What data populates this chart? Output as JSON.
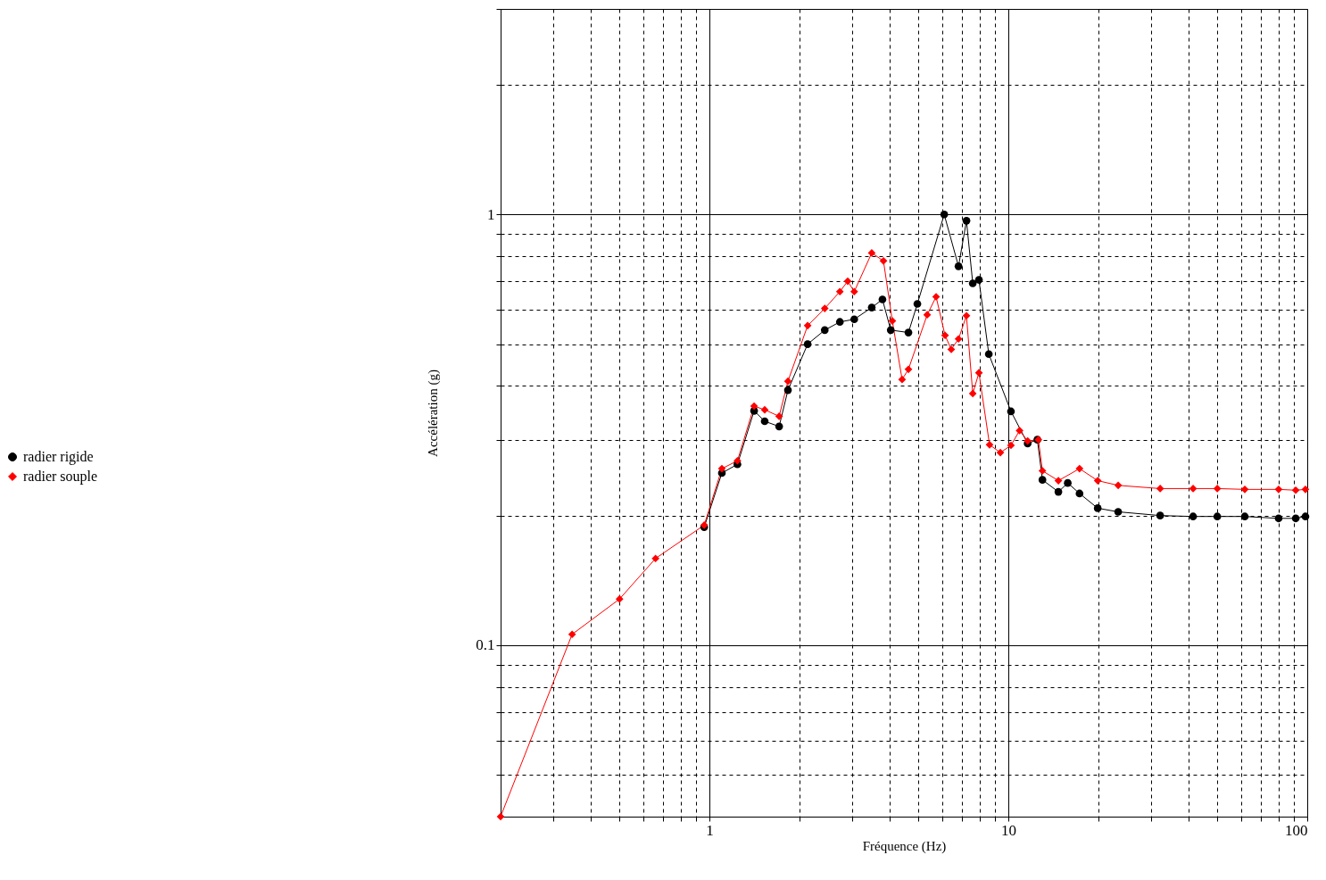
{
  "chart_data": {
    "type": "line",
    "xlabel": "Fréquence (Hz)",
    "ylabel": "Accélération (g)",
    "log": "xy",
    "xlim": [
      0.2,
      100
    ],
    "ylim": [
      0.04,
      3
    ],
    "xticks": [
      {
        "value": 0.3,
        "label": null
      },
      {
        "value": 0.4,
        "label": null
      },
      {
        "value": 0.5,
        "label": null
      },
      {
        "value": 0.6,
        "label": null
      },
      {
        "value": 0.7,
        "label": null
      },
      {
        "value": 0.8,
        "label": null
      },
      {
        "value": 0.9,
        "label": null
      },
      1,
      {
        "value": 2,
        "label": null
      },
      {
        "value": 3,
        "label": null
      },
      {
        "value": 4,
        "label": null
      },
      {
        "value": 5,
        "label": null
      },
      {
        "value": 6,
        "label": null
      },
      {
        "value": 7,
        "label": null
      },
      {
        "value": 8,
        "label": null
      },
      {
        "value": 9,
        "label": null
      },
      10,
      {
        "value": 20,
        "label": null
      },
      {
        "value": 30,
        "label": null
      },
      {
        "value": 40,
        "label": null
      },
      {
        "value": 50,
        "label": null
      },
      {
        "value": 60,
        "label": null
      },
      {
        "value": 70,
        "label": null
      },
      {
        "value": 80,
        "label": null
      },
      {
        "value": 90,
        "label": null
      },
      100
    ],
    "yticks": [
      {
        "value": 0.05,
        "label": null
      },
      {
        "value": 0.06,
        "label": null
      },
      {
        "value": 0.07,
        "label": null
      },
      {
        "value": 0.08,
        "label": null
      },
      {
        "value": 0.09,
        "label": null
      },
      0.1,
      {
        "value": 0.2,
        "label": null
      },
      {
        "value": 0.3,
        "label": null
      },
      {
        "value": 0.4,
        "label": null
      },
      {
        "value": 0.5,
        "label": null
      },
      {
        "value": 0.6,
        "label": null
      },
      {
        "value": 0.7,
        "label": null
      },
      {
        "value": 0.8,
        "label": null
      },
      {
        "value": 0.9,
        "label": null
      },
      1,
      {
        "value": 2,
        "label": null
      },
      {
        "value": 3,
        "label": null
      }
    ],
    "grid": true,
    "legend": "left",
    "line_style": "solid",
    "series": [
      {
        "name": "radier rigide",
        "color": "#000000",
        "marker": "circle",
        "x": [
          0.96,
          1.1,
          1.24,
          1.41,
          1.53,
          1.71,
          1.83,
          2.13,
          2.43,
          2.73,
          3.05,
          3.49,
          3.79,
          4.04,
          4.63,
          4.96,
          6.1,
          6.81,
          7.24,
          7.6,
          7.97,
          8.6,
          10.2,
          11.6,
          12.5,
          13.0,
          14.7,
          15.8,
          17.3,
          19.9,
          23.3,
          32.2,
          41.5,
          50,
          61.8,
          80.2,
          91.5,
          98.6
        ],
        "values": [
          0.188,
          0.251,
          0.263,
          0.35,
          0.331,
          0.322,
          0.391,
          0.5,
          0.539,
          0.563,
          0.571,
          0.608,
          0.635,
          0.539,
          0.532,
          0.62,
          1.0,
          0.758,
          0.967,
          0.692,
          0.705,
          0.474,
          0.349,
          0.294,
          0.3,
          0.242,
          0.227,
          0.238,
          0.225,
          0.208,
          0.204,
          0.2,
          0.199,
          0.199,
          0.199,
          0.197,
          0.197,
          0.199
        ]
      },
      {
        "name": "radier souple",
        "color": "#ff0000",
        "marker": "diamond",
        "x": [
          0.2,
          0.347,
          0.5,
          0.66,
          0.96,
          1.1,
          1.24,
          1.41,
          1.53,
          1.71,
          1.83,
          2.13,
          2.43,
          2.73,
          2.9,
          3.05,
          3.49,
          3.82,
          4.09,
          4.41,
          4.63,
          5.35,
          5.73,
          6.14,
          6.44,
          6.81,
          7.24,
          7.6,
          7.97,
          8.65,
          9.4,
          10.2,
          10.9,
          11.6,
          12.6,
          13.0,
          14.7,
          17.3,
          19.9,
          23.3,
          32.2,
          41.5,
          50,
          61.8,
          80.2,
          91.5,
          98.6
        ],
        "values": [
          0.04,
          0.106,
          0.128,
          0.159,
          0.19,
          0.257,
          0.268,
          0.359,
          0.352,
          0.34,
          0.41,
          0.552,
          0.605,
          0.662,
          0.7,
          0.662,
          0.814,
          0.78,
          0.566,
          0.414,
          0.437,
          0.585,
          0.644,
          0.524,
          0.486,
          0.514,
          0.582,
          0.384,
          0.429,
          0.292,
          0.28,
          0.291,
          0.315,
          0.298,
          0.3,
          0.254,
          0.241,
          0.257,
          0.241,
          0.235,
          0.231,
          0.231,
          0.231,
          0.23,
          0.23,
          0.229,
          0.23
        ]
      }
    ]
  }
}
